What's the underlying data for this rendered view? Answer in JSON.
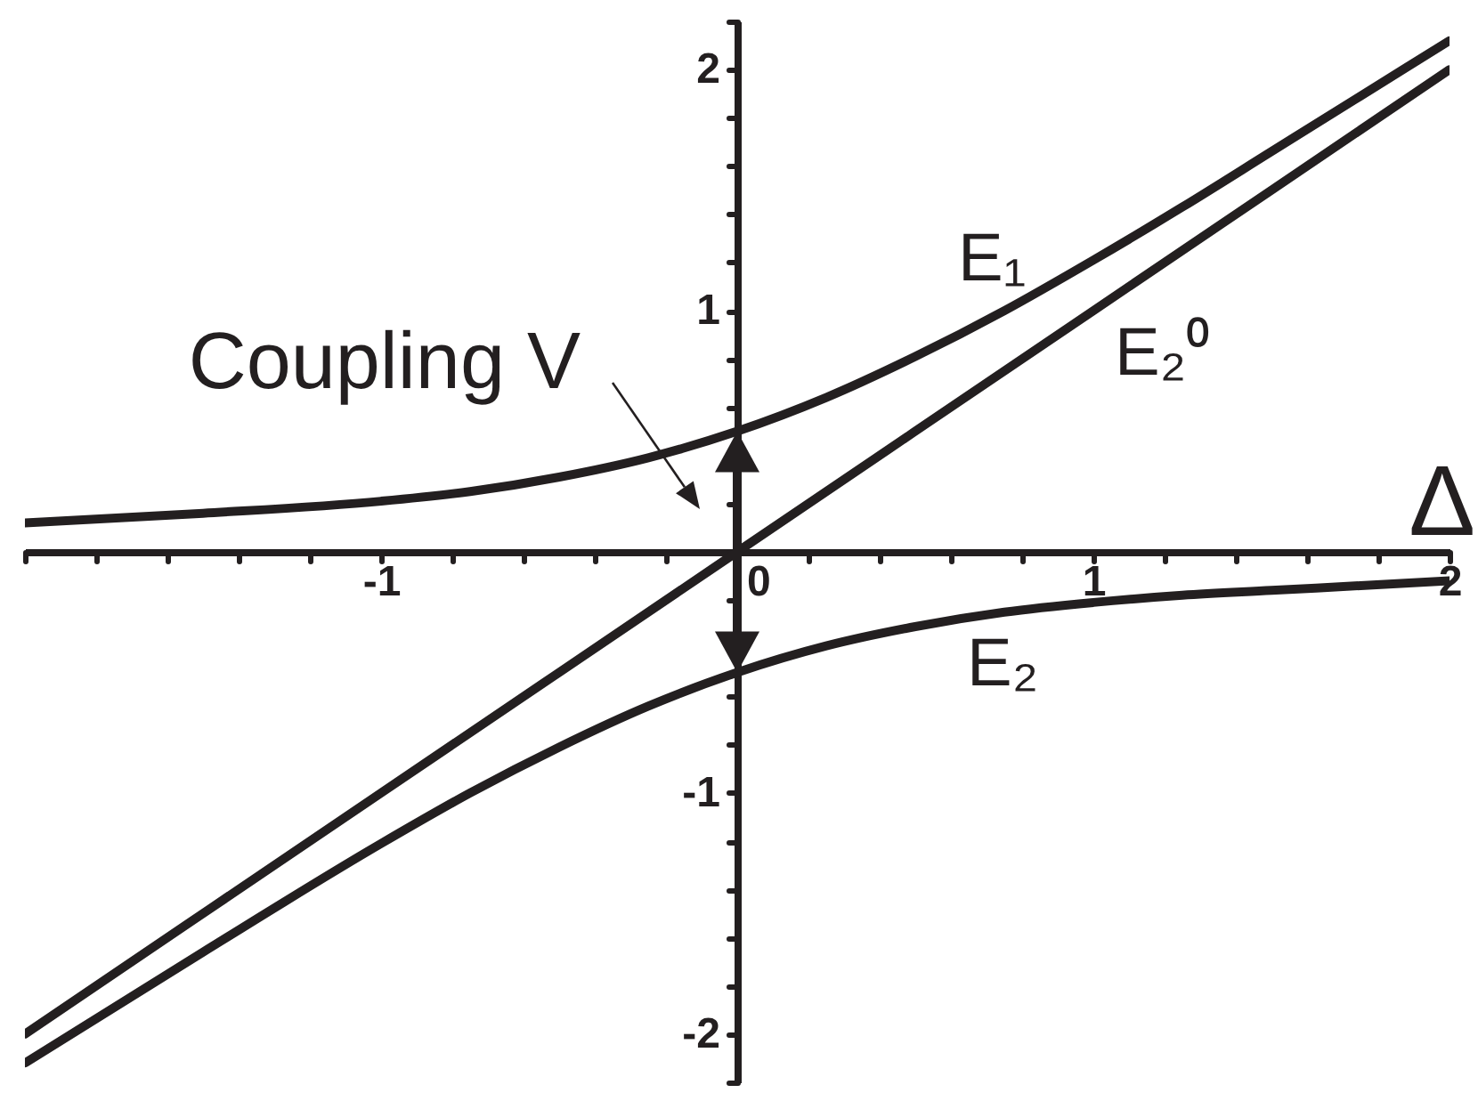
{
  "chart_data": {
    "type": "line",
    "xlabel": "Δ",
    "annotations": [
      "Coupling V"
    ],
    "xlim": [
      -2,
      2
    ],
    "ylim": [
      -2.2,
      2.2
    ],
    "xticks": [
      {
        "value": -2,
        "label": null
      },
      {
        "value": -1.8,
        "label": null
      },
      {
        "value": -1.6,
        "label": null
      },
      {
        "value": -1.4,
        "label": null
      },
      {
        "value": -1.2,
        "label": null
      },
      -1,
      {
        "value": -0.8,
        "label": null
      },
      {
        "value": -0.6,
        "label": null
      },
      {
        "value": -0.4,
        "label": null
      },
      {
        "value": -0.2,
        "label": null
      },
      0,
      {
        "value": 0.2,
        "label": null
      },
      {
        "value": 0.4,
        "label": null
      },
      {
        "value": 0.6,
        "label": null
      },
      {
        "value": 0.8,
        "label": null
      },
      1,
      {
        "value": 1.2,
        "label": null
      },
      {
        "value": 1.4,
        "label": null
      },
      {
        "value": 1.6,
        "label": null
      },
      {
        "value": 1.8,
        "label": null
      },
      2
    ],
    "yticks": [
      {
        "value": -2.2,
        "label": null
      },
      -2,
      {
        "value": -1.8,
        "label": null
      },
      {
        "value": -1.6,
        "label": null
      },
      {
        "value": -1.4,
        "label": null
      },
      {
        "value": -1.2,
        "label": null
      },
      -1,
      {
        "value": -0.8,
        "label": null
      },
      {
        "value": -0.6,
        "label": null
      },
      {
        "value": -0.4,
        "label": null
      },
      {
        "value": -0.2,
        "label": null
      },
      {
        "value": 0,
        "label": null
      },
      {
        "value": 0.2,
        "label": null
      },
      {
        "value": 0.4,
        "label": null
      },
      {
        "value": 0.6,
        "label": null
      },
      {
        "value": 0.8,
        "label": null
      },
      1,
      {
        "value": 1.2,
        "label": null
      },
      {
        "value": 1.4,
        "label": null
      },
      {
        "value": 1.6,
        "label": null
      },
      {
        "value": 1.8,
        "label": null
      },
      2,
      {
        "value": 2.2,
        "label": null
      }
    ],
    "series": [
      {
        "name": "E₁",
        "color": "#231f20",
        "x": [
          -2,
          -1.5,
          -1,
          -0.75,
          -0.5,
          -0.25,
          0,
          0.25,
          0.5,
          0.75,
          1,
          1.25,
          1.5,
          1.75,
          2
        ],
        "values": [
          0.12,
          0.16,
          0.21,
          0.25,
          0.31,
          0.39,
          0.5,
          0.64,
          0.81,
          1.0,
          1.21,
          1.43,
          1.66,
          1.89,
          2.12
        ]
      },
      {
        "name": "E₂⁰",
        "color": "#231f20",
        "x": [
          -2,
          -1,
          0,
          1,
          2
        ],
        "values": [
          -2,
          -1,
          0,
          1,
          2
        ]
      },
      {
        "name": "E₂",
        "color": "#231f20",
        "x": [
          -2,
          -1.5,
          -1,
          -0.75,
          -0.5,
          -0.25,
          0,
          0.25,
          0.5,
          0.75,
          1,
          1.25,
          1.5,
          1.75,
          2
        ],
        "values": [
          -2.12,
          -1.66,
          -1.21,
          -1.0,
          -0.81,
          -0.64,
          -0.5,
          -0.39,
          -0.31,
          -0.25,
          -0.21,
          -0.18,
          -0.16,
          -0.14,
          -0.12
        ]
      }
    ]
  }
}
